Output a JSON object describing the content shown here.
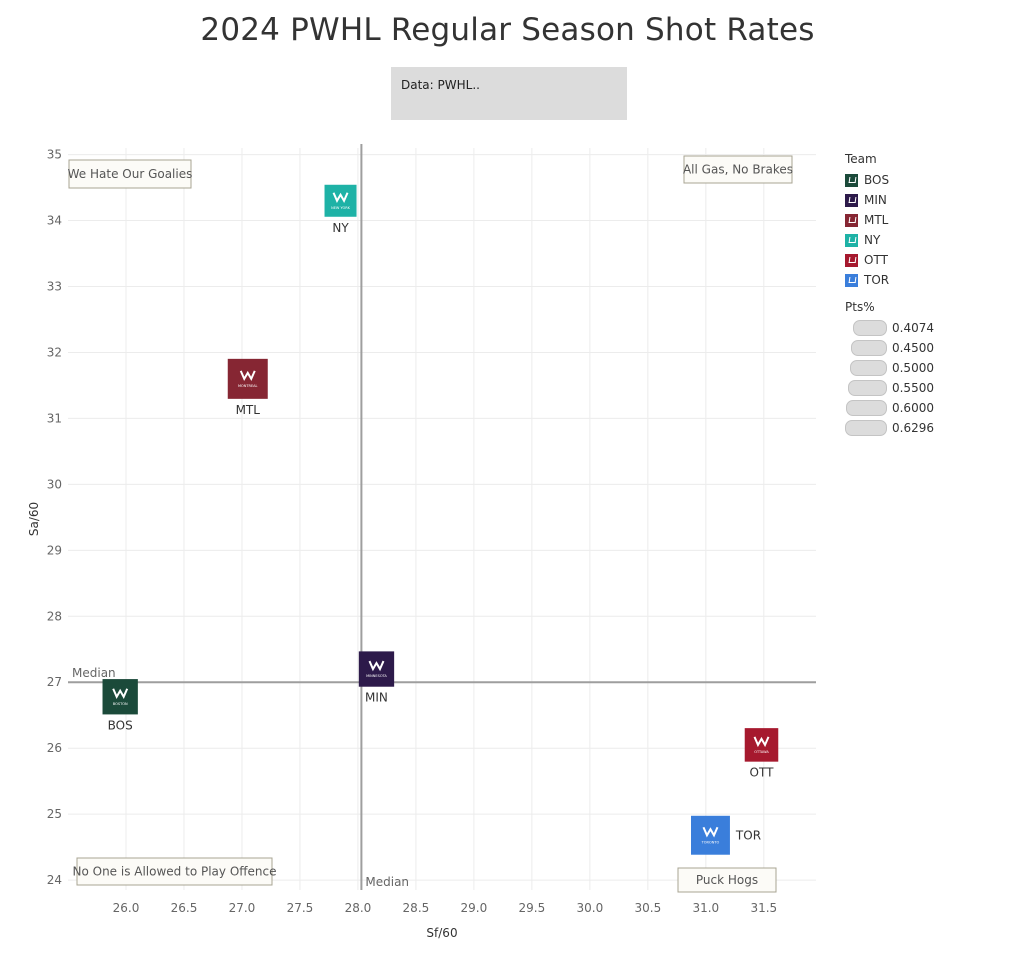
{
  "title": "2024 PWHL Regular Season Shot Rates",
  "source_note": "Data: PWHL..",
  "chart_data": {
    "type": "scatter",
    "title": "2024 PWHL Regular Season Shot Rates",
    "xlabel": "Sf/60",
    "ylabel": "Sa/60",
    "xlim": [
      25.5,
      31.95
    ],
    "ylim": [
      23.85,
      35.1
    ],
    "xticks": [
      "26.0",
      "26.5",
      "27.0",
      "27.5",
      "28.0",
      "28.5",
      "29.0",
      "29.5",
      "30.0",
      "30.5",
      "31.0",
      "31.5"
    ],
    "yticks": [
      "24",
      "25",
      "26",
      "27",
      "28",
      "29",
      "30",
      "31",
      "32",
      "33",
      "34",
      "35"
    ],
    "grid": true,
    "legend_position": "right",
    "median_x": 28.03,
    "median_y": 27.0,
    "median_x_label": "Median",
    "median_y_label": "Median",
    "points": [
      {
        "team": "BOS",
        "sf60": 25.95,
        "sa60": 26.78,
        "pts_pct": 0.5,
        "color": "#1b4a3a",
        "logo_text": "BOSTON"
      },
      {
        "team": "MIN",
        "sf60": 28.16,
        "sa60": 27.2,
        "pts_pct": 0.5,
        "color": "#2d1a4a",
        "logo_text": "MINNESOTA"
      },
      {
        "team": "MTL",
        "sf60": 27.05,
        "sa60": 31.6,
        "pts_pct": 0.6296,
        "color": "#862633",
        "logo_text": "MONTREAL"
      },
      {
        "team": "NY",
        "sf60": 27.85,
        "sa60": 34.3,
        "pts_pct": 0.4074,
        "color": "#1eb2a6",
        "logo_text": "NEW YORK"
      },
      {
        "team": "OTT",
        "sf60": 31.48,
        "sa60": 26.05,
        "pts_pct": 0.45,
        "color": "#a6192e",
        "logo_text": "OTTAWA"
      },
      {
        "team": "TOR",
        "sf60": 31.04,
        "sa60": 24.68,
        "pts_pct": 0.6,
        "color": "#3a7edb",
        "logo_text": "TORONTO"
      }
    ],
    "quadrant_labels": [
      {
        "text": "We Hate Our Goalies",
        "corner": "top-left"
      },
      {
        "text": "All Gas, No Brakes",
        "corner": "top-right"
      },
      {
        "text": "No One is Allowed to Play Offence",
        "corner": "bottom-left"
      },
      {
        "text": "Puck Hogs",
        "corner": "bottom-right"
      }
    ]
  },
  "legend": {
    "team_title": "Team",
    "teams": [
      {
        "label": "BOS",
        "color": "#1b4a3a"
      },
      {
        "label": "MIN",
        "color": "#2d1a4a"
      },
      {
        "label": "MTL",
        "color": "#862633"
      },
      {
        "label": "NY",
        "color": "#1eb2a6"
      },
      {
        "label": "OTT",
        "color": "#a6192e"
      },
      {
        "label": "TOR",
        "color": "#3a7edb"
      }
    ],
    "size_title": "Pts%",
    "sizes": [
      "0.4074",
      "0.4500",
      "0.5000",
      "0.5500",
      "0.6000",
      "0.6296"
    ]
  }
}
